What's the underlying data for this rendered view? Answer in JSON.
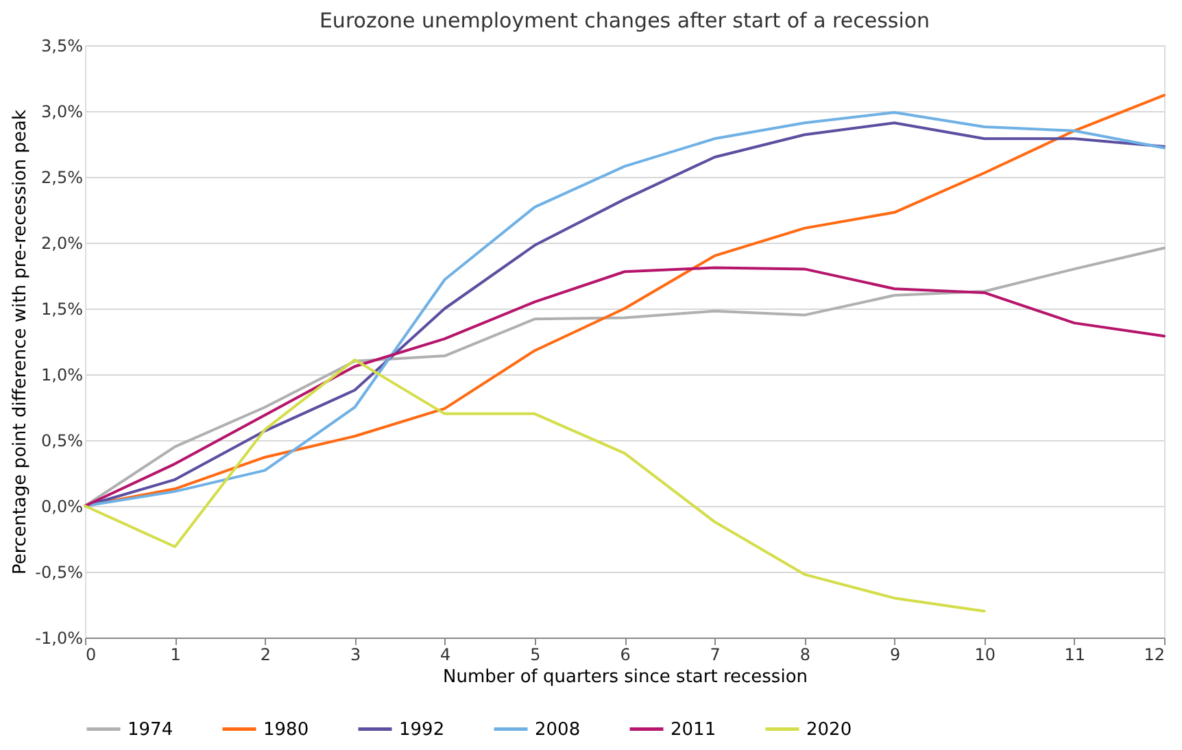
{
  "chart_data": {
    "type": "line",
    "title": "Eurozone unemployment changes after start of a recession",
    "xlabel": "Number of quarters since start recession",
    "ylabel": "Percentage point difference with pre-recession peak",
    "x": [
      0,
      1,
      2,
      3,
      4,
      5,
      6,
      7,
      8,
      9,
      10,
      11,
      12
    ],
    "series": [
      {
        "name": "1974",
        "color": "#b0b0b0",
        "values": [
          0,
          0.45,
          0.75,
          1.1,
          1.14,
          1.42,
          1.43,
          1.48,
          1.45,
          1.6,
          1.63,
          1.8,
          1.96
        ]
      },
      {
        "name": "1980",
        "color": "#ff6a13",
        "values": [
          0,
          0.13,
          0.37,
          0.53,
          0.74,
          1.18,
          1.5,
          1.9,
          2.11,
          2.23,
          2.53,
          2.85,
          3.12
        ]
      },
      {
        "name": "1992",
        "color": "#5b4fa0",
        "values": [
          0,
          0.2,
          0.57,
          0.88,
          1.5,
          1.98,
          2.33,
          2.65,
          2.82,
          2.91,
          2.79,
          2.79,
          2.73
        ]
      },
      {
        "name": "2008",
        "color": "#6fb1e5",
        "values": [
          0,
          0.11,
          0.27,
          0.75,
          1.72,
          2.27,
          2.58,
          2.79,
          2.91,
          2.99,
          2.88,
          2.85,
          2.72
        ]
      },
      {
        "name": "2011",
        "color": "#b5156b",
        "values": [
          0,
          0.32,
          0.69,
          1.06,
          1.27,
          1.55,
          1.78,
          1.81,
          1.8,
          1.65,
          1.62,
          1.39,
          1.29
        ]
      },
      {
        "name": "2020",
        "color": "#d4dd4a",
        "values": [
          0,
          -0.31,
          0.58,
          1.11,
          0.7,
          0.7,
          0.4,
          -0.12,
          -0.52,
          -0.7,
          -0.8,
          null,
          null
        ]
      }
    ],
    "xlim": [
      0,
      12
    ],
    "xticks": [
      0,
      1,
      2,
      3,
      4,
      5,
      6,
      7,
      8,
      9,
      10,
      11,
      12
    ],
    "ylim": [
      -1.0,
      3.5
    ],
    "yticks": [
      {
        "value": -1.0,
        "label": "-1,0%"
      },
      {
        "value": -0.5,
        "label": "-0,5%"
      },
      {
        "value": 0,
        "label": "0,0%"
      },
      {
        "value": 0.5,
        "label": "0,5%"
      },
      {
        "value": 1.0,
        "label": "1,0%"
      },
      {
        "value": 1.5,
        "label": "1,5%"
      },
      {
        "value": 2.0,
        "label": "2,0%"
      },
      {
        "value": 2.5,
        "label": "2,5%"
      },
      {
        "value": 3.0,
        "label": "3,0%"
      },
      {
        "value": 3.5,
        "label": "3,5%"
      }
    ],
    "grid": "y",
    "legend": "bottom",
    "marker": "none",
    "line_style": "solid"
  }
}
